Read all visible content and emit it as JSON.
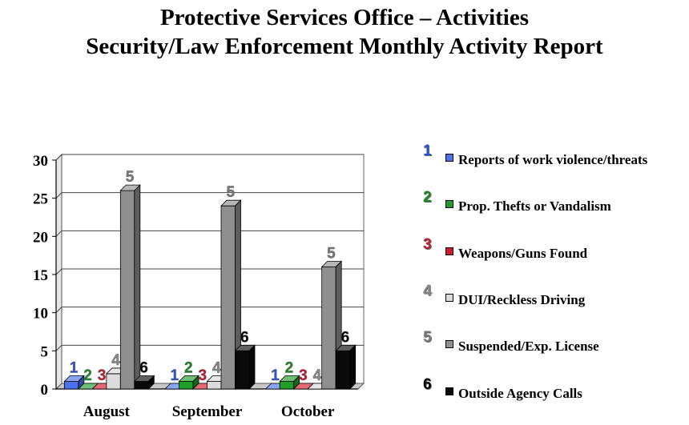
{
  "title_lines": [
    "Protective Services Office – Activities",
    "Security/Law Enforcement Monthly Activity Report"
  ],
  "chart_data": {
    "type": "bar",
    "categories": [
      "August",
      "September",
      "October"
    ],
    "ylim": [
      0,
      30
    ],
    "yticks": [
      0,
      5,
      10,
      15,
      20,
      25,
      30
    ],
    "grid": true,
    "legend_position": "right",
    "series": [
      {
        "name": "Reports of work violence/threats",
        "marker": "1",
        "color": "#4a72f0",
        "label_color": "#2b55d6",
        "values": [
          1,
          0,
          0
        ]
      },
      {
        "name": "Prop. Thefts or Vandalism",
        "marker": "2",
        "color": "#1f9e2a",
        "label_color": "#1c8a22",
        "values": [
          0,
          1,
          1
        ]
      },
      {
        "name": "Weapons/Guns Found",
        "marker": "3",
        "color": "#d4192c",
        "label_color": "#c21b2e",
        "values": [
          0,
          0,
          0
        ]
      },
      {
        "name": "DUI/Reckless Driving",
        "marker": "4",
        "color": "#dcdcdc",
        "label_color": "#8a8a8a",
        "values": [
          2,
          1,
          0
        ]
      },
      {
        "name": "Suspended/Exp. License",
        "marker": "5",
        "color": "#8f8f8f",
        "label_color": "#7a7a7a",
        "values": [
          26,
          24,
          16
        ]
      },
      {
        "name": "Outside Agency Calls",
        "marker": "6",
        "color": "#0a0a0a",
        "label_color": "#000000",
        "values": [
          1,
          5,
          5
        ]
      }
    ]
  }
}
